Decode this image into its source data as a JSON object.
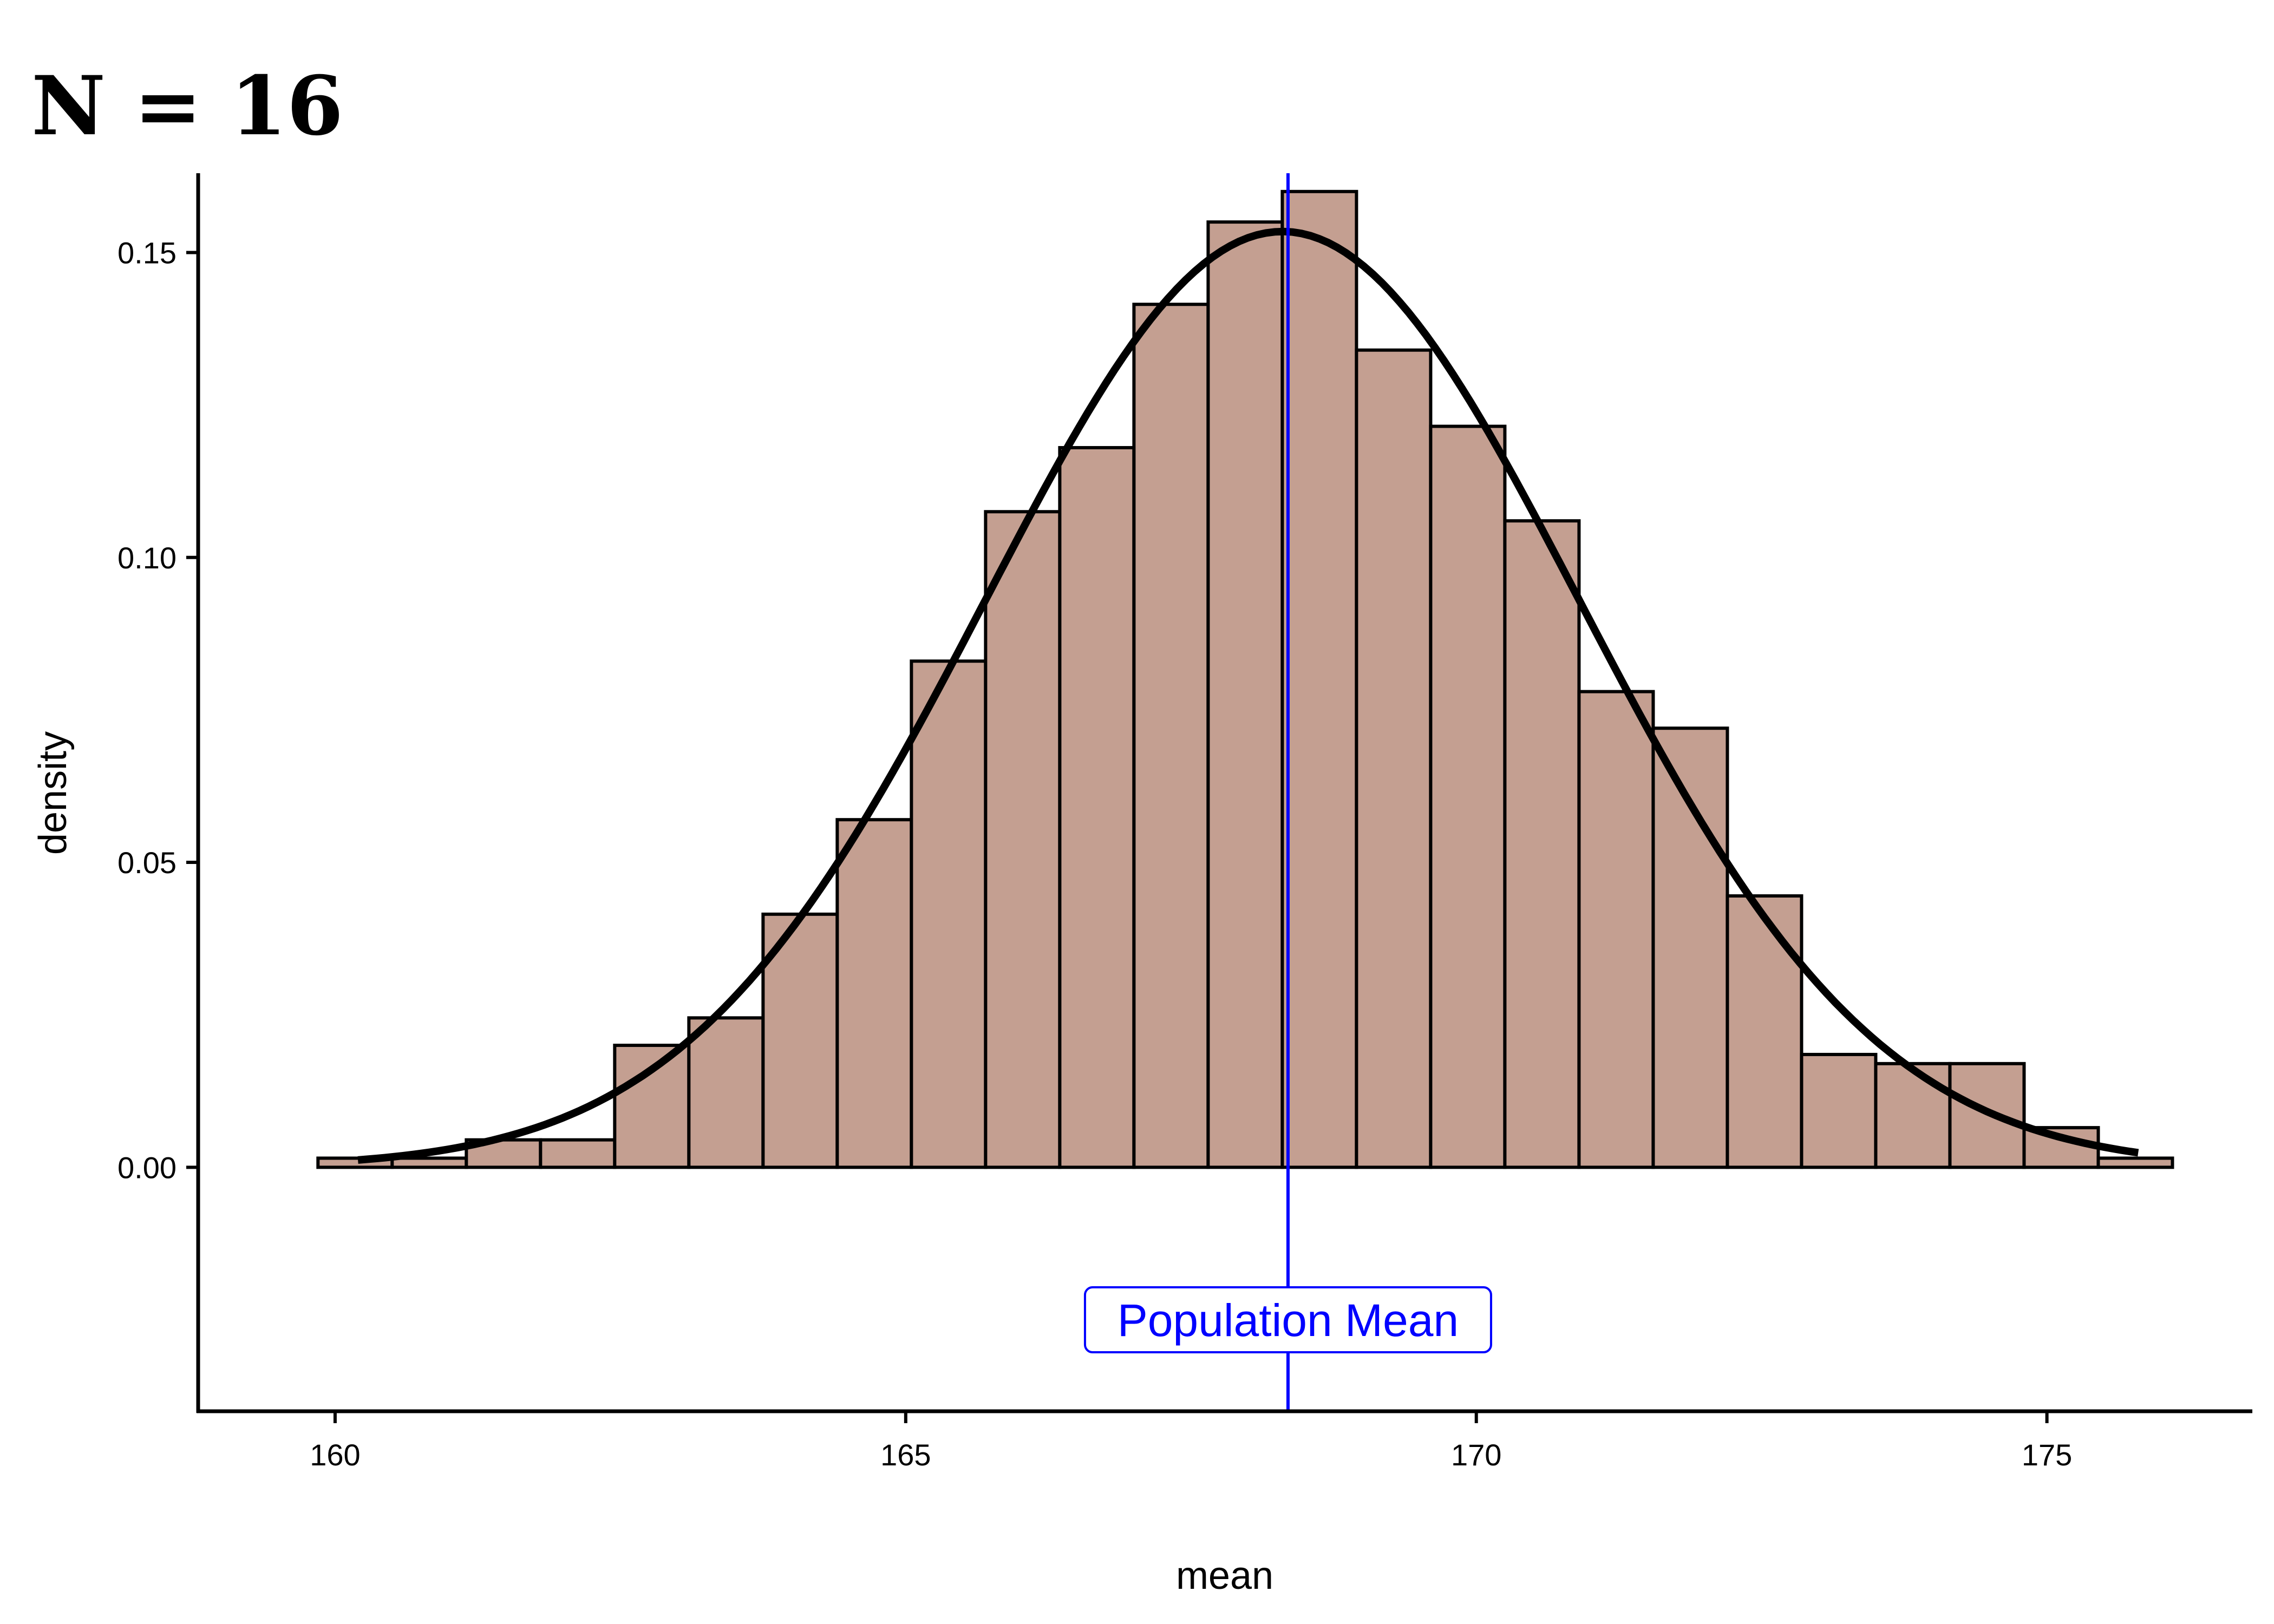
{
  "chart_data": {
    "type": "bar",
    "title": "N = 16",
    "xlabel": "mean",
    "ylabel": "density",
    "xlim": [
      158.8,
      176.8
    ],
    "ylim": [
      -0.04,
      0.163
    ],
    "x_ticks": [
      160,
      165,
      170,
      175
    ],
    "x_tick_labels": [
      "160",
      "165",
      "170",
      "175"
    ],
    "y_ticks": [
      0,
      0.05,
      0.1,
      0.15
    ],
    "y_tick_labels": [
      "0.00",
      "0.05",
      "0.10",
      "0.15"
    ],
    "bin_start": 159.85,
    "bin_width": 0.65,
    "values": [
      0.0015,
      0.0015,
      0.0045,
      0.0045,
      0.02,
      0.0245,
      0.0415,
      0.057,
      0.083,
      0.1075,
      0.118,
      0.1415,
      0.155,
      0.16,
      0.134,
      0.1215,
      0.106,
      0.078,
      0.072,
      0.0445,
      0.0185,
      0.017,
      0.017,
      0.0065,
      0.0015
    ],
    "normal_curve": {
      "mean": 168.3,
      "sd": 2.6,
      "x_range": [
        160.2,
        175.8
      ]
    },
    "population_mean": 168.35,
    "annotation": "Population Mean",
    "annotation_y": -0.025,
    "grid": false,
    "colors": {
      "bar_fill": "#c49f91",
      "bar_stroke": "#000000",
      "curve": "#000000",
      "mean_line": "#0000ff"
    }
  }
}
